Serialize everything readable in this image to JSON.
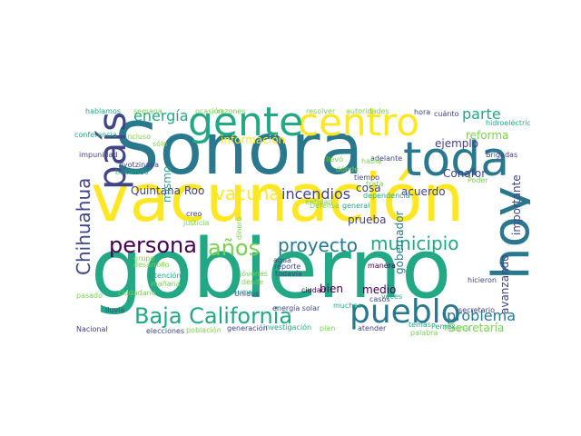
{
  "word_cloud": {
    "words": [
      {
        "text": "gobierno",
        "color": "#22a884"
      },
      {
        "text": "vacunación",
        "color": "#fde725"
      },
      {
        "text": "Sonora",
        "color": "#2a788e"
      },
      {
        "text": "centro",
        "color": "#fde725"
      },
      {
        "text": "toda",
        "color": "#2a788e"
      },
      {
        "text": "gente",
        "color": "#22a884"
      },
      {
        "text": "hoy",
        "color": "#2a788e"
      },
      {
        "text": "país",
        "color": "#414487"
      },
      {
        "text": "pueblo",
        "color": "#2a788e"
      },
      {
        "text": "Baja California",
        "color": "#22a884"
      },
      {
        "text": "persona",
        "color": "#440154"
      },
      {
        "text": "años",
        "color": "#7ad151"
      },
      {
        "text": "proyecto",
        "color": "#2a788e"
      },
      {
        "text": "municipio",
        "color": "#22a884"
      },
      {
        "text": "Chihuahua",
        "color": "#414487"
      },
      {
        "text": "vacuna",
        "color": "#fde725"
      },
      {
        "text": "incendios",
        "color": "#414487"
      },
      {
        "text": "problema",
        "color": "#2a788e"
      },
      {
        "text": "parte",
        "color": "#22a884"
      },
      {
        "text": "energía",
        "color": "#22a884"
      },
      {
        "text": "información",
        "color": "#fde725"
      },
      {
        "text": "Quintana Roo",
        "color": "#414487"
      },
      {
        "text": "reforma",
        "color": "#7ad151"
      },
      {
        "text": "ejemplo",
        "color": "#414487"
      },
      {
        "text": "acuerdo",
        "color": "#414487"
      },
      {
        "text": "importante",
        "color": "#414487"
      },
      {
        "text": "Conafor",
        "color": "#414487"
      },
      {
        "text": "avanzando",
        "color": "#414487"
      },
      {
        "text": "gobernador",
        "color": "#2a788e"
      },
      {
        "text": "Secretaría",
        "color": "#7ad151"
      },
      {
        "text": "cosa",
        "color": "#414487"
      },
      {
        "text": "prueba",
        "color": "#414487"
      },
      {
        "text": "mismo",
        "color": "#22a884"
      },
      {
        "text": "sólo",
        "color": "#7ad151"
      },
      {
        "text": "bien",
        "color": "#440154"
      },
      {
        "text": "medio",
        "color": "#440154"
      },
      {
        "text": "Unidos",
        "color": "#414487"
      },
      {
        "text": "manera",
        "color": "#440154"
      },
      {
        "text": "casos",
        "color": "#414487"
      },
      {
        "text": "general",
        "color": "#22a884"
      },
      {
        "text": "hidroeléctrica",
        "color": "#22a884"
      },
      {
        "text": "Brigadas",
        "color": "#414487"
      },
      {
        "text": "cuánto",
        "color": "#414487"
      },
      {
        "text": "hora",
        "color": "#414487"
      },
      {
        "text": "secretario",
        "color": "#414487"
      },
      {
        "text": "atender",
        "color": "#414487"
      },
      {
        "text": "Tijuana",
        "color": "#7ad151"
      },
      {
        "text": "palabra",
        "color": "#7ad151"
      },
      {
        "text": "Pemex",
        "color": "#22a884"
      },
      {
        "text": "temas",
        "color": "#22a884"
      },
      {
        "text": "hicieron",
        "color": "#414487"
      },
      {
        "text": "veces",
        "color": "#22a884"
      },
      {
        "text": "muchas",
        "color": "#22a884"
      },
      {
        "text": "ciudad",
        "color": "#440154"
      },
      {
        "text": "todavía",
        "color": "#414487"
      },
      {
        "text": "reporte",
        "color": "#414487"
      },
      {
        "text": "agua",
        "color": "#414487"
      },
      {
        "text": "desde",
        "color": "#7ad151"
      },
      {
        "text": "jóvenes",
        "color": "#7ad151"
      },
      {
        "text": "nuevo",
        "color": "#22a884"
      },
      {
        "text": "energía solar",
        "color": "#414487"
      },
      {
        "text": "investigación",
        "color": "#22a884"
      },
      {
        "text": "generación",
        "color": "#414487"
      },
      {
        "text": "población",
        "color": "#7ad151"
      },
      {
        "text": "elecciones",
        "color": "#414487"
      },
      {
        "text": "Nacional",
        "color": "#414487"
      },
      {
        "text": "lluvia",
        "color": "#414487"
      },
      {
        "text": "ciudadano",
        "color": "#7ad151"
      },
      {
        "text": "atención",
        "color": "#22a884"
      },
      {
        "text": "mañana",
        "color": "#7ad151"
      },
      {
        "text": "pasado",
        "color": "#7ad151"
      },
      {
        "text": "desarrollo",
        "color": "#7ad151"
      },
      {
        "text": "grupo",
        "color": "#7ad151"
      },
      {
        "text": "justicia",
        "color": "#7ad151"
      },
      {
        "text": "creo",
        "color": "#414487"
      },
      {
        "text": "dinero",
        "color": "#7ad151"
      },
      {
        "text": "Ayotzinapa",
        "color": "#414487"
      },
      {
        "text": "haciendo",
        "color": "#22a884"
      },
      {
        "text": "impunidad",
        "color": "#414487"
      },
      {
        "text": "conferencia",
        "color": "#22a884"
      },
      {
        "text": "incluso",
        "color": "#7ad151"
      },
      {
        "text": "hablamos",
        "color": "#22a884"
      },
      {
        "text": "semana",
        "color": "#7ad151"
      },
      {
        "text": "ocasión",
        "color": "#7ad151"
      },
      {
        "text": "razones",
        "color": "#7ad151"
      },
      {
        "text": "resolver",
        "color": "#7ad151"
      },
      {
        "text": "autoridades",
        "color": "#7ad151"
      },
      {
        "text": "adelante",
        "color": "#414487"
      },
      {
        "text": "tiempo",
        "color": "#414487"
      },
      {
        "text": "habla",
        "color": "#7ad151"
      },
      {
        "text": "llevó",
        "color": "#7ad151"
      },
      {
        "text": "dependencia",
        "color": "#22a884"
      },
      {
        "text": "trata",
        "color": "#7ad151"
      },
      {
        "text": "Poder",
        "color": "#7ad151"
      },
      {
        "text": "dónde",
        "color": "#7ad151"
      },
      {
        "text": "entidad",
        "color": "#7ad151"
      },
      {
        "text": "plan",
        "color": "#7ad151"
      },
      {
        "text": "Defensa",
        "color": "#7ad151"
      }
    ]
  }
}
